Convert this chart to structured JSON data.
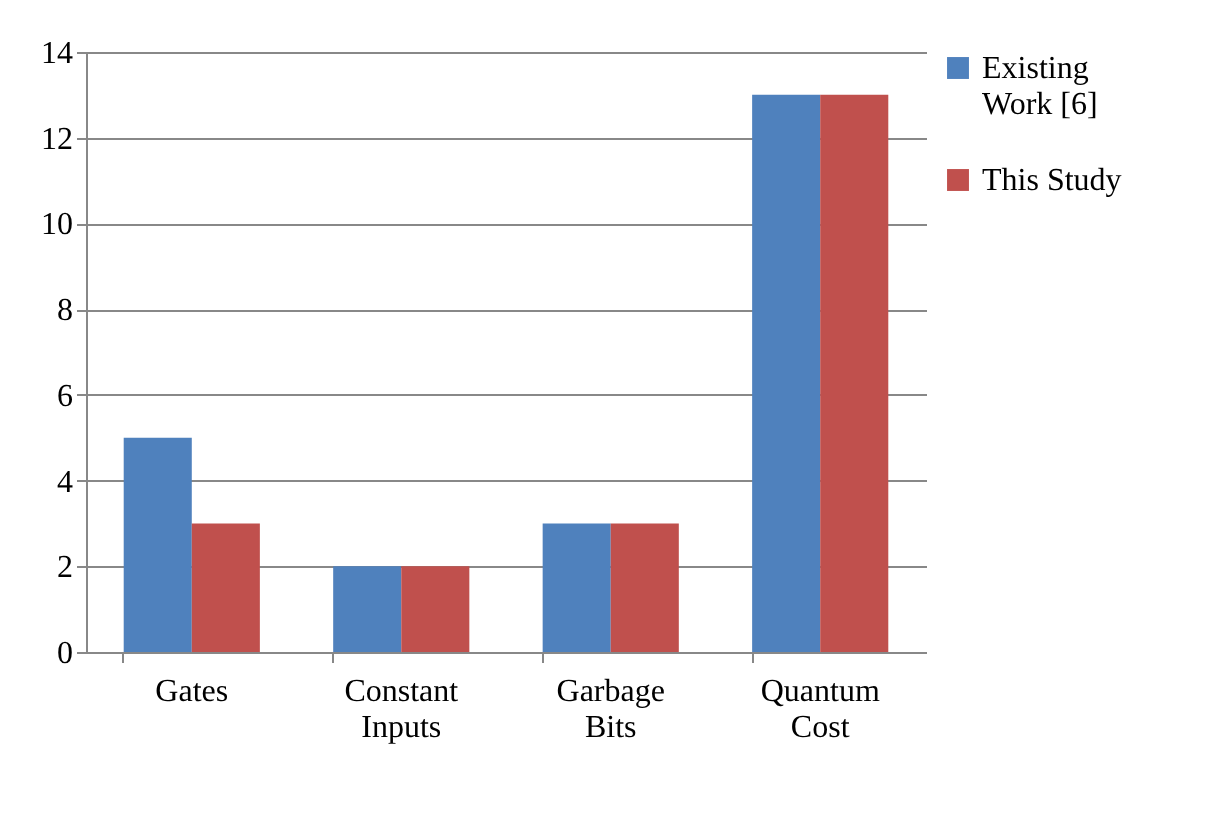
{
  "chart_data": {
    "type": "bar",
    "categories": [
      "Gates",
      "Constant Inputs",
      "Garbage Bits",
      "Quantum Cost"
    ],
    "series": [
      {
        "name": "Existing Work [6]",
        "color": "#4f81bd",
        "values": [
          5,
          2,
          3,
          13
        ]
      },
      {
        "name": "This Study",
        "color": "#c0504d",
        "values": [
          3,
          2,
          3,
          13
        ]
      }
    ],
    "ylim": [
      0,
      14
    ],
    "yticks": [
      0,
      2,
      4,
      6,
      8,
      10,
      12,
      14
    ],
    "grid": "y",
    "legend": "right"
  }
}
